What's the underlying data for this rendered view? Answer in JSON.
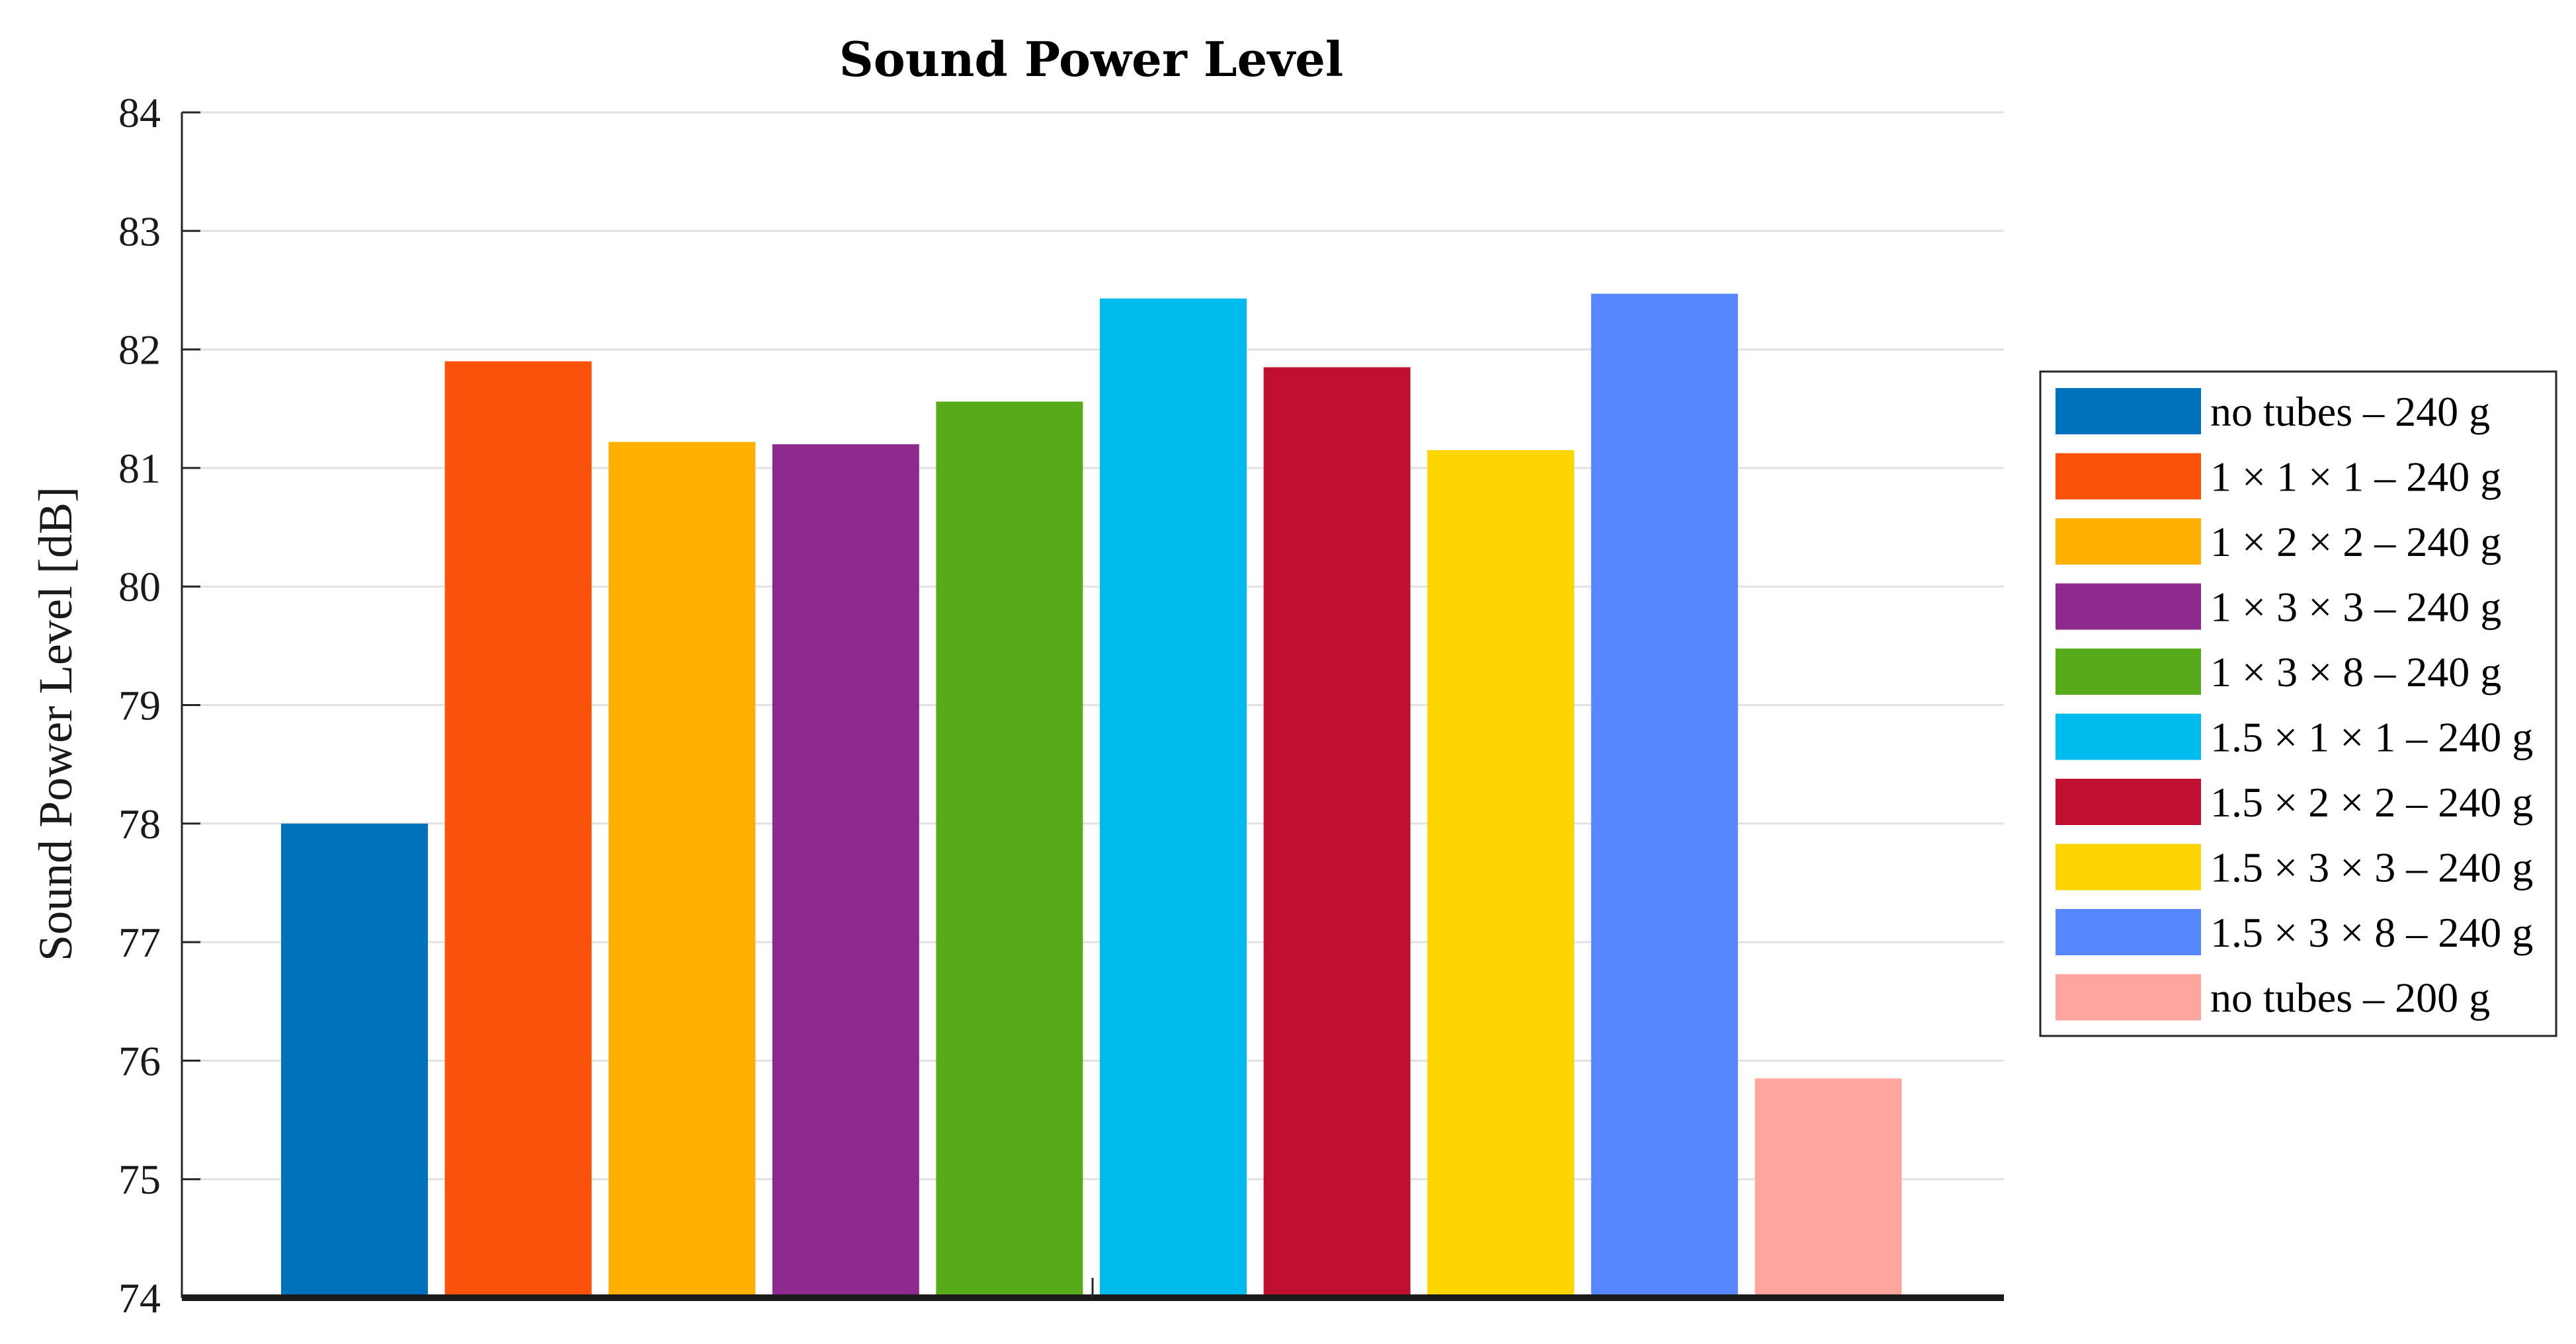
{
  "chart_data": {
    "type": "bar",
    "title": "Sound Power Level",
    "xlabel": "",
    "ylabel": "Sound Power Level [dB]",
    "ylim": [
      74,
      84
    ],
    "yticks": [
      74,
      75,
      76,
      77,
      78,
      79,
      80,
      81,
      82,
      83,
      84
    ],
    "grid": true,
    "legend_position": "right",
    "categories": [
      "no tubes – 240 g",
      "1 × 1 × 1 – 240 g",
      "1 × 2 × 2 – 240 g",
      "1 × 3 × 3 – 240 g",
      "1 × 3 × 8 – 240 g",
      "1.5 × 1 × 1 – 240 g",
      "1.5 × 2 × 2 – 240 g",
      "1.5 × 3 × 3 – 240 g",
      "1.5 × 3 × 8 – 240 g",
      "no tubes – 200 g"
    ],
    "values": [
      78.0,
      81.9,
      81.22,
      81.2,
      81.56,
      82.43,
      81.85,
      81.15,
      82.47,
      75.85
    ],
    "colors": [
      "#0072BD",
      "#FA520A",
      "#FFB000",
      "#8E2A8E",
      "#57AB19",
      "#00BCEE",
      "#C00F31",
      "#FFD500",
      "#5687FF",
      "#FFA59E"
    ]
  }
}
